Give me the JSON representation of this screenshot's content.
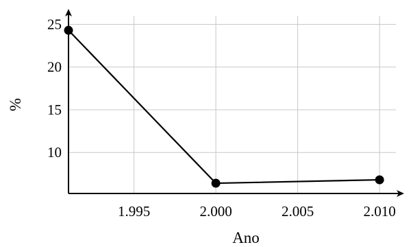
{
  "chart_data": {
    "type": "line",
    "title": "",
    "xlabel": "Ano",
    "ylabel": "%",
    "x": [
      1991,
      2000,
      2010
    ],
    "series": [
      {
        "values": [
          24.3,
          6.4,
          6.8
        ]
      }
    ],
    "xlim": [
      1991,
      2011
    ],
    "ylim": [
      5.2,
      26
    ],
    "x_ticks": [
      1995,
      2000,
      2005,
      2010
    ],
    "x_tick_labels": [
      "1.995",
      "2.000",
      "2.005",
      "2.010"
    ],
    "y_ticks": [
      10,
      15,
      20,
      25
    ],
    "y_tick_labels": [
      "10",
      "15",
      "20",
      "25"
    ],
    "grid": true,
    "colors": {
      "series": "#000000",
      "grid": "#c8c8c8",
      "axis": "#000000"
    }
  }
}
